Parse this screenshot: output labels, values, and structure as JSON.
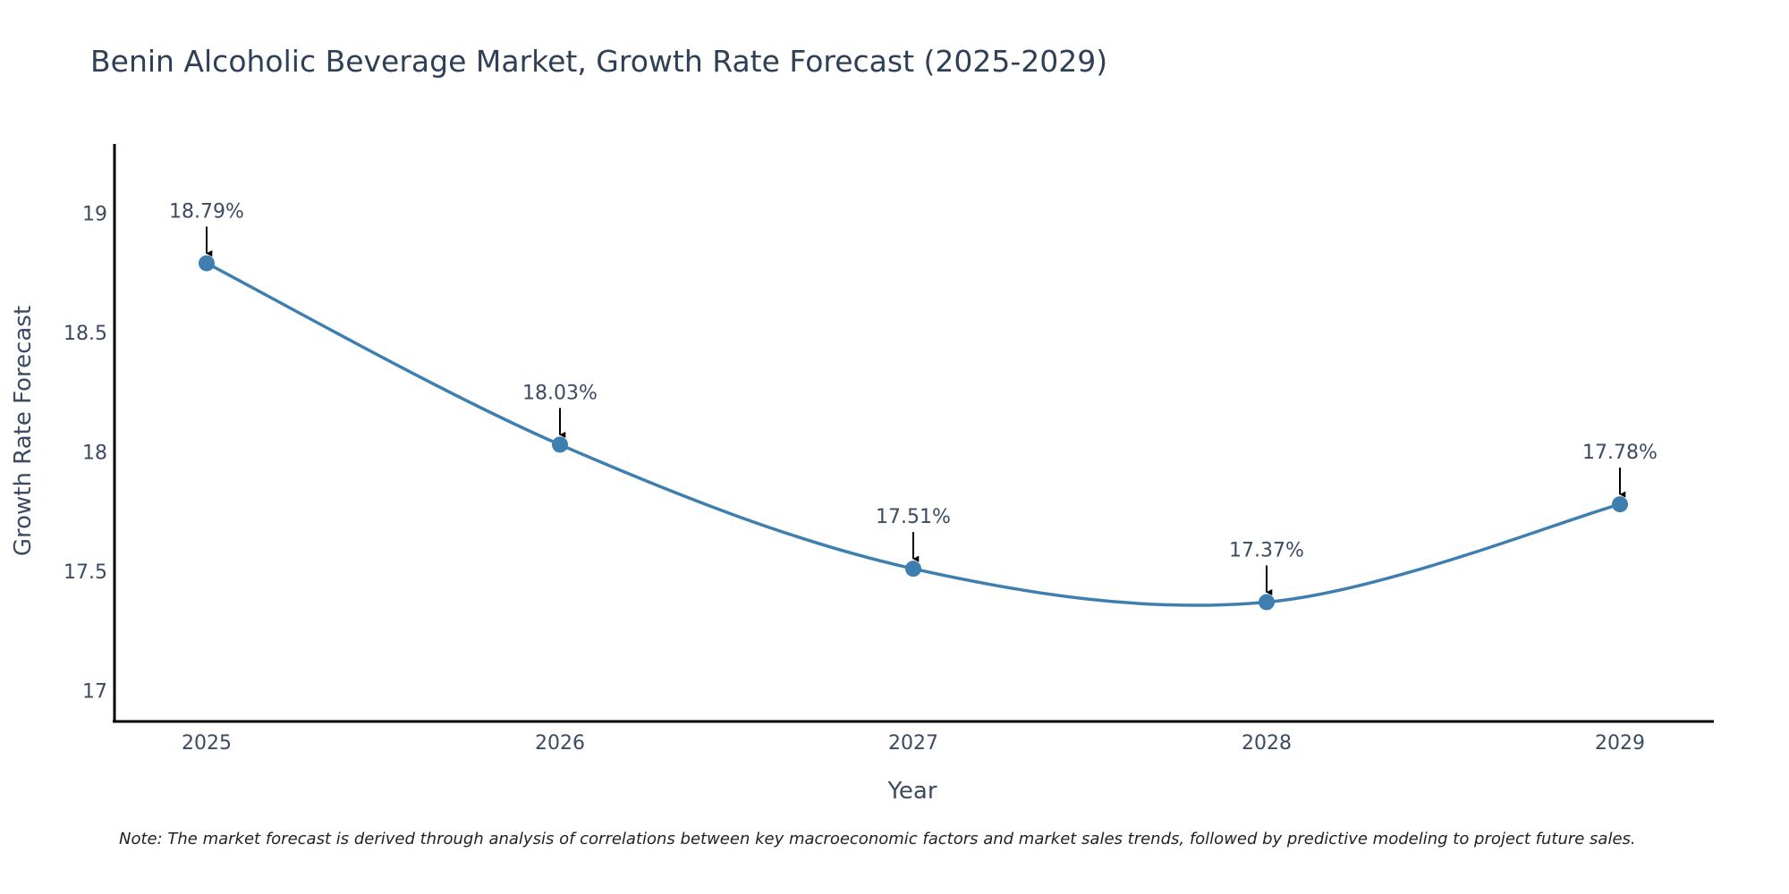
{
  "chart_data": {
    "type": "line",
    "title": "Benin Alcoholic Beverage Market, Growth Rate Forecast (2025-2029)",
    "xlabel": "Year",
    "ylabel": "Growth Rate Forecast",
    "categories": [
      "2025",
      "2026",
      "2027",
      "2028",
      "2029"
    ],
    "values": [
      18.79,
      18.03,
      17.51,
      17.37,
      17.78
    ],
    "data_labels": [
      "18.79%",
      "18.03%",
      "17.51%",
      "17.37%",
      "17.78%"
    ],
    "ylim": [
      16.87,
      19.29
    ],
    "yticks": [
      17,
      17.5,
      18,
      18.5,
      19
    ],
    "ytick_labels": [
      "17",
      "17.5",
      "18",
      "18.5",
      "19"
    ],
    "line_shape": "spline",
    "grid": false,
    "colors": {
      "line": "#3f7fb0",
      "marker": "#3f7fb0",
      "annotation_arrow": "#000000",
      "axis": "#000000",
      "text": "#3b4b63"
    },
    "note": "Note: The market forecast is derived through analysis of correlations between key macroeconomic factors and market sales trends, followed by predictive modeling to project future sales."
  }
}
